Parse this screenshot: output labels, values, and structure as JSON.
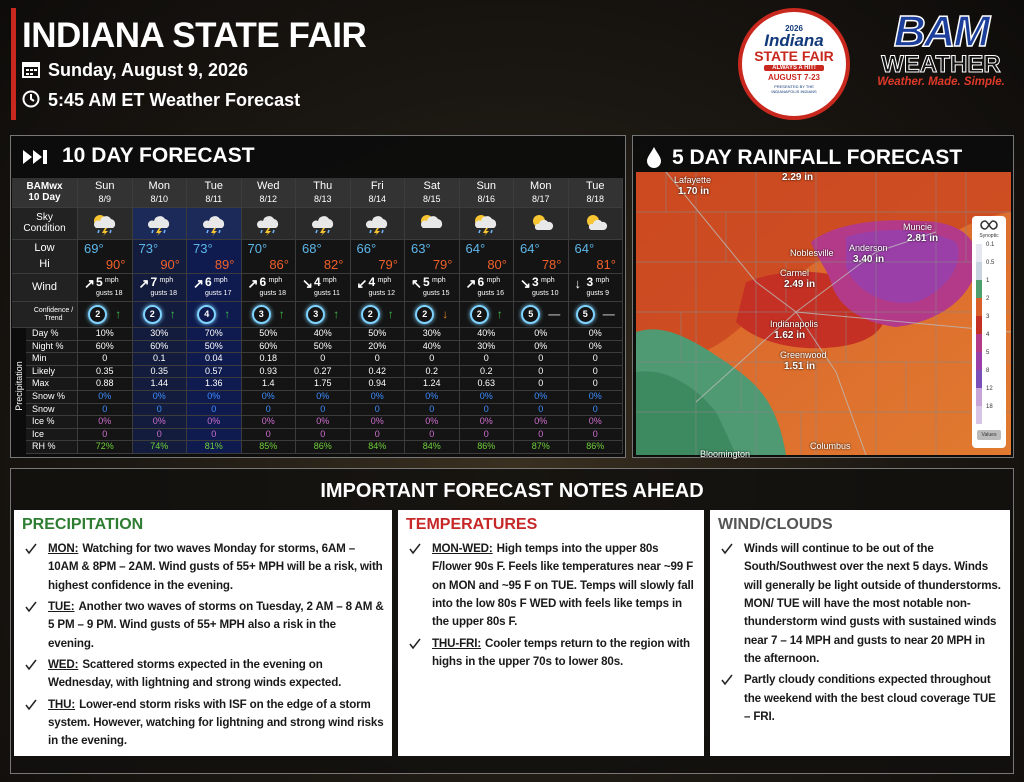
{
  "header": {
    "title": "INDIANA STATE FAIR",
    "date": "Sunday, August 9, 2026",
    "subtitle": "5:45 AM ET Weather Forecast"
  },
  "fair_logo": {
    "year": "2026",
    "name": "Indiana",
    "event": "STATE FAIR",
    "tagline": "ALWAYS A HIT!",
    "dates": "AUGUST 7-23",
    "sponsor": "PRESENTED BY THE INDIANAPOLIS INDIANS"
  },
  "brand_logo": {
    "name": "BAM",
    "product": "WEATHER",
    "tagline": "Weather. Made. Simple."
  },
  "forecast": {
    "title": "10 DAY FORECAST",
    "source": "BAMwx",
    "period": "10 Day",
    "row_labels": {
      "sky": "Sky Condition",
      "low": "Low",
      "hi": "Hi",
      "wind": "Wind",
      "confidence": "Confidence / Trend",
      "precipitation": "Precipitation",
      "day_pct": "Day %",
      "night_pct": "Night %",
      "min": "Min",
      "likely": "Likely",
      "max": "Max",
      "snow_pct": "Snow %",
      "snow": "Snow",
      "ice_pct": "Ice %",
      "ice": "Ice",
      "rh": "RH %"
    },
    "wind_unit": "mph",
    "days": [
      {
        "day": "Sun",
        "date": "8/9",
        "low": "69°",
        "hi": "90°",
        "wind_dir": "↗",
        "wind_speed": 5,
        "gusts": "gusts 18",
        "confidence": 2,
        "trend": "↑",
        "day_pct": "10%",
        "night_pct": "60%",
        "min": 0,
        "likely": 0.35,
        "max": 0.88,
        "snow_pct": "0%",
        "snow": 0,
        "ice_pct": "0%",
        "ice": 0,
        "rh": "72%"
      },
      {
        "day": "Mon",
        "date": "8/10",
        "low": "73°",
        "hi": "90°",
        "wind_dir": "↗",
        "wind_speed": 7,
        "gusts": "gusts 18",
        "confidence": 2,
        "trend": "↑",
        "day_pct": "30%",
        "night_pct": "60%",
        "min": 0.1,
        "likely": 0.35,
        "max": 1.44,
        "snow_pct": "0%",
        "snow": 0,
        "ice_pct": "0%",
        "ice": 0,
        "rh": "74%"
      },
      {
        "day": "Tue",
        "date": "8/11",
        "low": "73°",
        "hi": "89°",
        "wind_dir": "↗",
        "wind_speed": 6,
        "gusts": "gusts 17",
        "confidence": 4,
        "trend": "↑",
        "day_pct": "70%",
        "night_pct": "50%",
        "min": 0.04,
        "likely": 0.57,
        "max": 1.36,
        "snow_pct": "0%",
        "snow": 0,
        "ice_pct": "0%",
        "ice": 0,
        "rh": "81%"
      },
      {
        "day": "Wed",
        "date": "8/12",
        "low": "70°",
        "hi": "86°",
        "wind_dir": "↗",
        "wind_speed": 6,
        "gusts": "gusts 18",
        "confidence": 3,
        "trend": "↑",
        "day_pct": "50%",
        "night_pct": "60%",
        "min": 0.18,
        "likely": 0.93,
        "max": 1.4,
        "snow_pct": "0%",
        "snow": 0,
        "ice_pct": "0%",
        "ice": 0,
        "rh": "85%"
      },
      {
        "day": "Thu",
        "date": "8/13",
        "low": "68°",
        "hi": "82°",
        "wind_dir": "↘",
        "wind_speed": 4,
        "gusts": "gusts 11",
        "confidence": 3,
        "trend": "↑",
        "day_pct": "40%",
        "night_pct": "50%",
        "min": 0,
        "likely": 0.27,
        "max": 1.75,
        "snow_pct": "0%",
        "snow": 0,
        "ice_pct": "0%",
        "ice": 0,
        "rh": "86%"
      },
      {
        "day": "Fri",
        "date": "8/14",
        "low": "66°",
        "hi": "79°",
        "wind_dir": "↙",
        "wind_speed": 4,
        "gusts": "gusts 12",
        "confidence": 2,
        "trend": "↑",
        "day_pct": "50%",
        "night_pct": "20%",
        "min": 0,
        "likely": 0.42,
        "max": 0.94,
        "snow_pct": "0%",
        "snow": 0,
        "ice_pct": "0%",
        "ice": 0,
        "rh": "84%"
      },
      {
        "day": "Sat",
        "date": "8/15",
        "low": "63°",
        "hi": "79°",
        "wind_dir": "↖",
        "wind_speed": 5,
        "gusts": "gusts 15",
        "confidence": 2,
        "trend": "↓",
        "day_pct": "30%",
        "night_pct": "40%",
        "min": 0,
        "likely": 0.2,
        "max": 1.24,
        "snow_pct": "0%",
        "snow": 0,
        "ice_pct": "0%",
        "ice": 0,
        "rh": "84%"
      },
      {
        "day": "Sun",
        "date": "8/16",
        "low": "64°",
        "hi": "80°",
        "wind_dir": "↗",
        "wind_speed": 6,
        "gusts": "gusts 16",
        "confidence": 2,
        "trend": "↑",
        "day_pct": "40%",
        "night_pct": "30%",
        "min": 0,
        "likely": 0.2,
        "max": 0.63,
        "snow_pct": "0%",
        "snow": 0,
        "ice_pct": "0%",
        "ice": 0,
        "rh": "86%"
      },
      {
        "day": "Mon",
        "date": "8/17",
        "low": "64°",
        "hi": "78°",
        "wind_dir": "↘",
        "wind_speed": 3,
        "gusts": "gusts 10",
        "confidence": 5,
        "trend": "—",
        "day_pct": "0%",
        "night_pct": "0%",
        "min": 0,
        "likely": 0,
        "max": 0,
        "snow_pct": "0%",
        "snow": 0,
        "ice_pct": "0%",
        "ice": 0,
        "rh": "87%"
      },
      {
        "day": "Tue",
        "date": "8/18",
        "low": "64°",
        "hi": "81°",
        "wind_dir": "↓",
        "wind_speed": 3,
        "gusts": "gusts 9",
        "confidence": 5,
        "trend": "—",
        "day_pct": "0%",
        "night_pct": "0%",
        "min": 0,
        "likely": 0,
        "max": 0,
        "snow_pct": "0%",
        "snow": 0,
        "ice_pct": "0%",
        "ice": 0,
        "rh": "86%"
      }
    ]
  },
  "rainfall": {
    "title": "5 DAY RAINFALL FORECAST",
    "cities": [
      {
        "name": "Lafayette",
        "amount": "1.70 in"
      },
      {
        "amount": "2.29 in"
      },
      {
        "name": "Muncie",
        "amount": "2.81 in"
      },
      {
        "name": "Anderson",
        "amount": "3.40 in"
      },
      {
        "name": "Noblesville"
      },
      {
        "name": "Carmel",
        "amount": "2.49 in"
      },
      {
        "name": "Indianapolis",
        "amount": "1.62 in"
      },
      {
        "name": "Greenwood",
        "amount": "1.51 in"
      },
      {
        "name": "Columbus"
      },
      {
        "name": "Bloomington"
      }
    ],
    "legend": {
      "title": "Synoptic",
      "values": [
        0.1,
        0.5,
        1,
        2,
        3,
        4,
        5,
        8,
        12,
        18
      ],
      "button": "Values"
    }
  },
  "notes": {
    "title": "IMPORTANT FORECAST NOTES AHEAD",
    "sections": [
      {
        "heading": "PRECIPITATION",
        "items": [
          {
            "lead": "MON:",
            "text": "Watching for two waves Monday for storms, 6AM – 10AM & 8PM – 2AM. Wind gusts of 55+ MPH will be a risk, with highest confidence in the evening."
          },
          {
            "lead": "TUE:",
            "text": "Another two waves of storms on Tuesday, 2 AM – 8 AM & 5 PM – 9 PM. Wind gusts of 55+ MPH also a risk in the evening."
          },
          {
            "lead": "WED:",
            "text": "Scattered storms expected in the evening on Wednesday, with lightning and strong winds expected."
          },
          {
            "lead": "THU:",
            "text": "Lower-end storm risks with ISF on the edge of a storm system. However, watching for lightning and strong wind risks in the evening."
          }
        ]
      },
      {
        "heading": "TEMPERATURES",
        "items": [
          {
            "lead": "MON-WED:",
            "text": "High temps into the upper 80s F/lower 90s F. Feels like temperatures near ~99 F on MON and ~95 F on TUE. Temps will slowly fall into the low 80s F WED with feels like temps in the upper 80s F."
          },
          {
            "lead": "THU-FRI:",
            "text": "Cooler temps return to the region with highs in the upper 70s to lower 80s."
          }
        ]
      },
      {
        "heading": "WIND/CLOUDS",
        "items": [
          {
            "text": "Winds will continue to be out of the South/Southwest over the next 5 days. Winds will generally be light outside of thunderstorms.  MON/ TUE will have the most notable non-thunderstorm wind gusts with sustained winds near 7 – 14 MPH and gusts to near 20 MPH in the afternoon."
          },
          {
            "text": "Partly cloudy conditions expected throughout the weekend with the best cloud coverage TUE – FRI."
          }
        ]
      }
    ]
  }
}
